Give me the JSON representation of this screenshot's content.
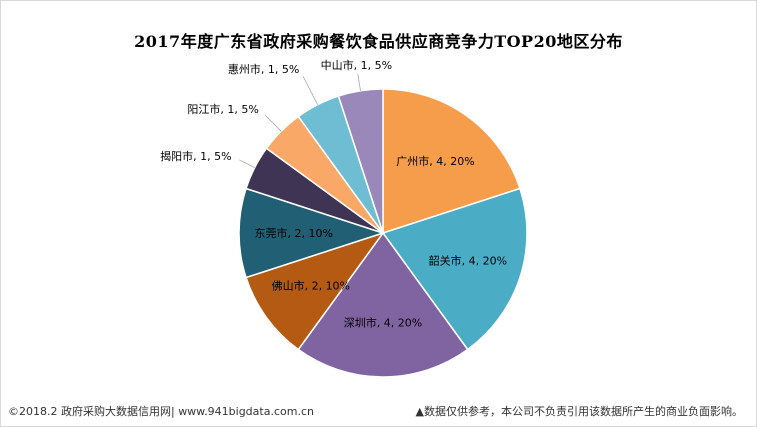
{
  "chart_data": {
    "type": "pie",
    "title": "2017年度广东省政府采购餐饮食品供应商竞争力TOP20地区分布",
    "slices": [
      {
        "label": "广州市, 4, 20%",
        "name": "广州市",
        "value": 4,
        "percent": 20,
        "color": "#f59d4b"
      },
      {
        "label": "韶关市, 4, 20%",
        "name": "韶关市",
        "value": 4,
        "percent": 20,
        "color": "#4aacc5"
      },
      {
        "label": "深圳市, 4, 20%",
        "name": "深圳市",
        "value": 4,
        "percent": 20,
        "color": "#8064a2"
      },
      {
        "label": "佛山市, 2, 10%",
        "name": "佛山市",
        "value": 2,
        "percent": 10,
        "color": "#b55a12"
      },
      {
        "label": "东莞市, 2, 10%",
        "name": "东莞市",
        "value": 2,
        "percent": 10,
        "color": "#215f74"
      },
      {
        "label": "揭阳市, 1, 5%",
        "name": "揭阳市",
        "value": 1,
        "percent": 5,
        "color": "#403455"
      },
      {
        "label": "阳江市, 1, 5%",
        "name": "阳江市",
        "value": 1,
        "percent": 5,
        "color": "#f9a868"
      },
      {
        "label": "惠州市, 1, 5%",
        "name": "惠州市",
        "value": 1,
        "percent": 5,
        "color": "#6ebdd2"
      },
      {
        "label": "中山市, 1, 5%",
        "name": "中山市",
        "value": 1,
        "percent": 5,
        "color": "#9b88ba"
      }
    ]
  },
  "footer": {
    "left": "©2018.2 政府采购大数据信用网| www.941bigdata.com.cn",
    "right": "▲数据仅供参考，本公司不负责引用该数据所产生的商业负面影响。"
  }
}
